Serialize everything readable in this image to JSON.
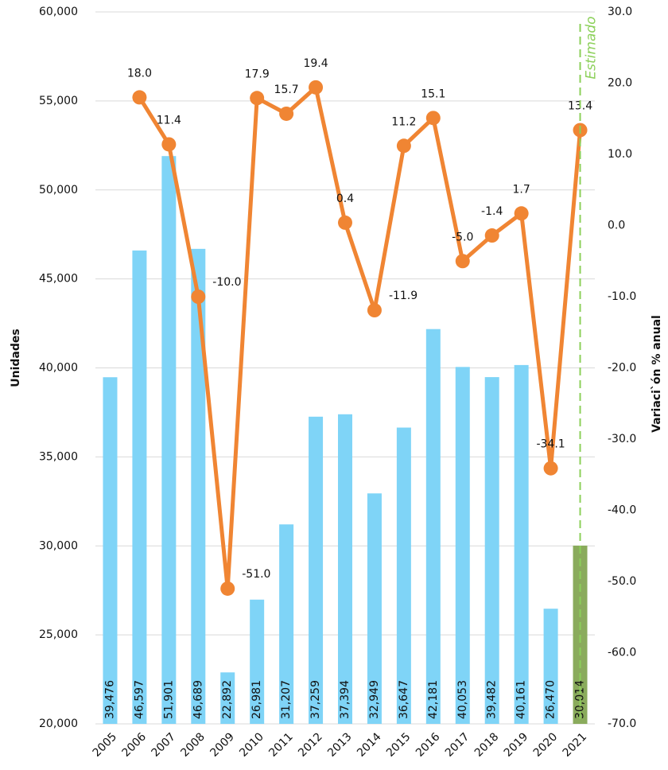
{
  "chart_data": {
    "type": "bar-line",
    "categories": [
      "2005",
      "2006",
      "2007",
      "2008",
      "2009",
      "2010",
      "2011",
      "2012",
      "2013",
      "2014",
      "2015",
      "2016",
      "2017",
      "2018",
      "2019",
      "2020",
      "2021"
    ],
    "series": [
      {
        "type": "bar",
        "color": "#7fd4f7",
        "colors": [
          "#7fd4f7",
          "#7fd4f7",
          "#7fd4f7",
          "#7fd4f7",
          "#7fd4f7",
          "#7fd4f7",
          "#7fd4f7",
          "#7fd4f7",
          "#7fd4f7",
          "#7fd4f7",
          "#7fd4f7",
          "#7fd4f7",
          "#7fd4f7",
          "#7fd4f7",
          "#7fd4f7",
          "#7fd4f7",
          "#8aab5c"
        ],
        "values": [
          39476,
          46597,
          51901,
          46689,
          22892,
          26981,
          31207,
          37259,
          37394,
          32949,
          36647,
          42181,
          40053,
          39482,
          40161,
          26470,
          30014
        ],
        "value_labels": [
          "39,476",
          "46,597",
          "51,901",
          "46,689",
          "22,892",
          "26,981",
          "31,207",
          "37,259",
          "37,394",
          "32,949",
          "36,647",
          "42,181",
          "40,053",
          "39,482",
          "40,161",
          "26,470",
          "30,014"
        ]
      },
      {
        "type": "line",
        "axis": "y2",
        "color": "#f08533",
        "values": [
          null,
          18.0,
          11.4,
          -10.0,
          -51.0,
          17.9,
          15.7,
          19.4,
          0.4,
          -11.9,
          11.2,
          15.1,
          -5.0,
          -1.4,
          1.7,
          -34.1,
          13.4
        ],
        "value_labels": [
          null,
          "18.0",
          "11.4",
          "-10.0",
          "-51.0",
          "17.9",
          "15.7",
          "19.4",
          "0.4",
          "-11.9",
          "11.2",
          "15.1",
          "-5.0",
          "-1.4",
          "1.7",
          "-34.1",
          "13.4"
        ]
      }
    ],
    "ylabel": "Unidades",
    "y2label": "Variaci`ón % anual",
    "ylim": [
      20000,
      60000
    ],
    "yticks": [
      {
        "value": 20000,
        "label": "20,000"
      },
      {
        "value": 25000,
        "label": "25,000"
      },
      {
        "value": 30000,
        "label": "30,000"
      },
      {
        "value": 35000,
        "label": "35,000"
      },
      {
        "value": 40000,
        "label": "40,000"
      },
      {
        "value": 45000,
        "label": "45,000"
      },
      {
        "value": 50000,
        "label": "50,000"
      },
      {
        "value": 55000,
        "label": "55,000"
      },
      {
        "value": 60000,
        "label": "60,000"
      }
    ],
    "y2lim": [
      -70,
      30
    ],
    "y2ticks": [
      {
        "value": -70,
        "label": "-70.0"
      },
      {
        "value": -60,
        "label": "-60.0"
      },
      {
        "value": -50,
        "label": "-50.0"
      },
      {
        "value": -40,
        "label": "-40.0"
      },
      {
        "value": -30,
        "label": "-30.0"
      },
      {
        "value": -20,
        "label": "-20.0"
      },
      {
        "value": -10,
        "label": "-10.0"
      },
      {
        "value": 0,
        "label": "0.0"
      },
      {
        "value": 10,
        "label": "10.0"
      },
      {
        "value": 20,
        "label": "20.0"
      },
      {
        "value": 30,
        "label": "30.0"
      }
    ],
    "grid": true,
    "annotation": {
      "text": "Estimado",
      "category": "2021",
      "color": "#8cd05a"
    }
  }
}
